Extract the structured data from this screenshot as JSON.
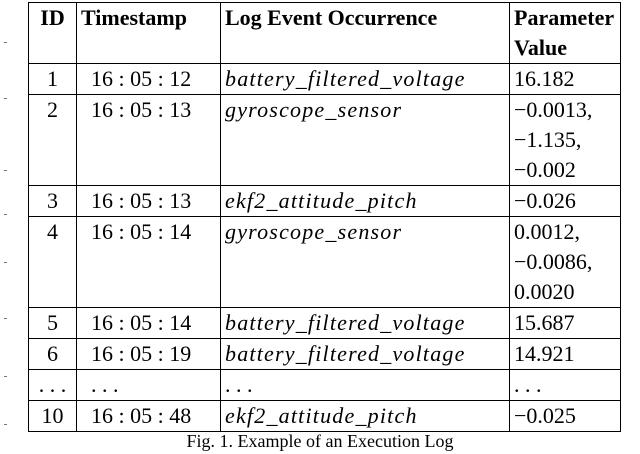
{
  "table": {
    "headers": {
      "id": "ID",
      "timestamp": "Timestamp",
      "event": "Log Event Occurrence",
      "value_line1": "Parameter",
      "value_line2": "Value"
    },
    "rows": [
      {
        "id": "1",
        "timestamp": "16 : 05 : 12",
        "event": "battery_filtered_voltage",
        "values": [
          "16.182"
        ]
      },
      {
        "id": "2",
        "timestamp": "16 : 05 : 13",
        "event": "gyroscope_sensor",
        "values": [
          "−0.0013,",
          "−1.135,",
          "−0.002"
        ]
      },
      {
        "id": "3",
        "timestamp": "16 : 05 : 13",
        "event": "ekf2_attitude_pitch",
        "values": [
          "−0.026"
        ]
      },
      {
        "id": "4",
        "timestamp": "16 : 05 : 14",
        "event": "gyroscope_sensor",
        "values": [
          "0.0012,",
          "−0.0086,",
          "0.0020"
        ]
      },
      {
        "id": "5",
        "timestamp": "16 : 05 : 14",
        "event": "battery_filtered_voltage",
        "values": [
          "15.687"
        ]
      },
      {
        "id": "6",
        "timestamp": "16 : 05 : 19",
        "event": "battery_filtered_voltage",
        "values": [
          "14.921"
        ]
      },
      {
        "id": ". . .",
        "timestamp": ". . .",
        "event": ". . .",
        "values": [
          ". . ."
        ]
      },
      {
        "id": "10",
        "timestamp": "16 : 05 : 48",
        "event": "ekf2_attitude_pitch",
        "values": [
          "−0.025"
        ]
      }
    ]
  },
  "caption": "Fig. 1.  Example of an Execution Log"
}
